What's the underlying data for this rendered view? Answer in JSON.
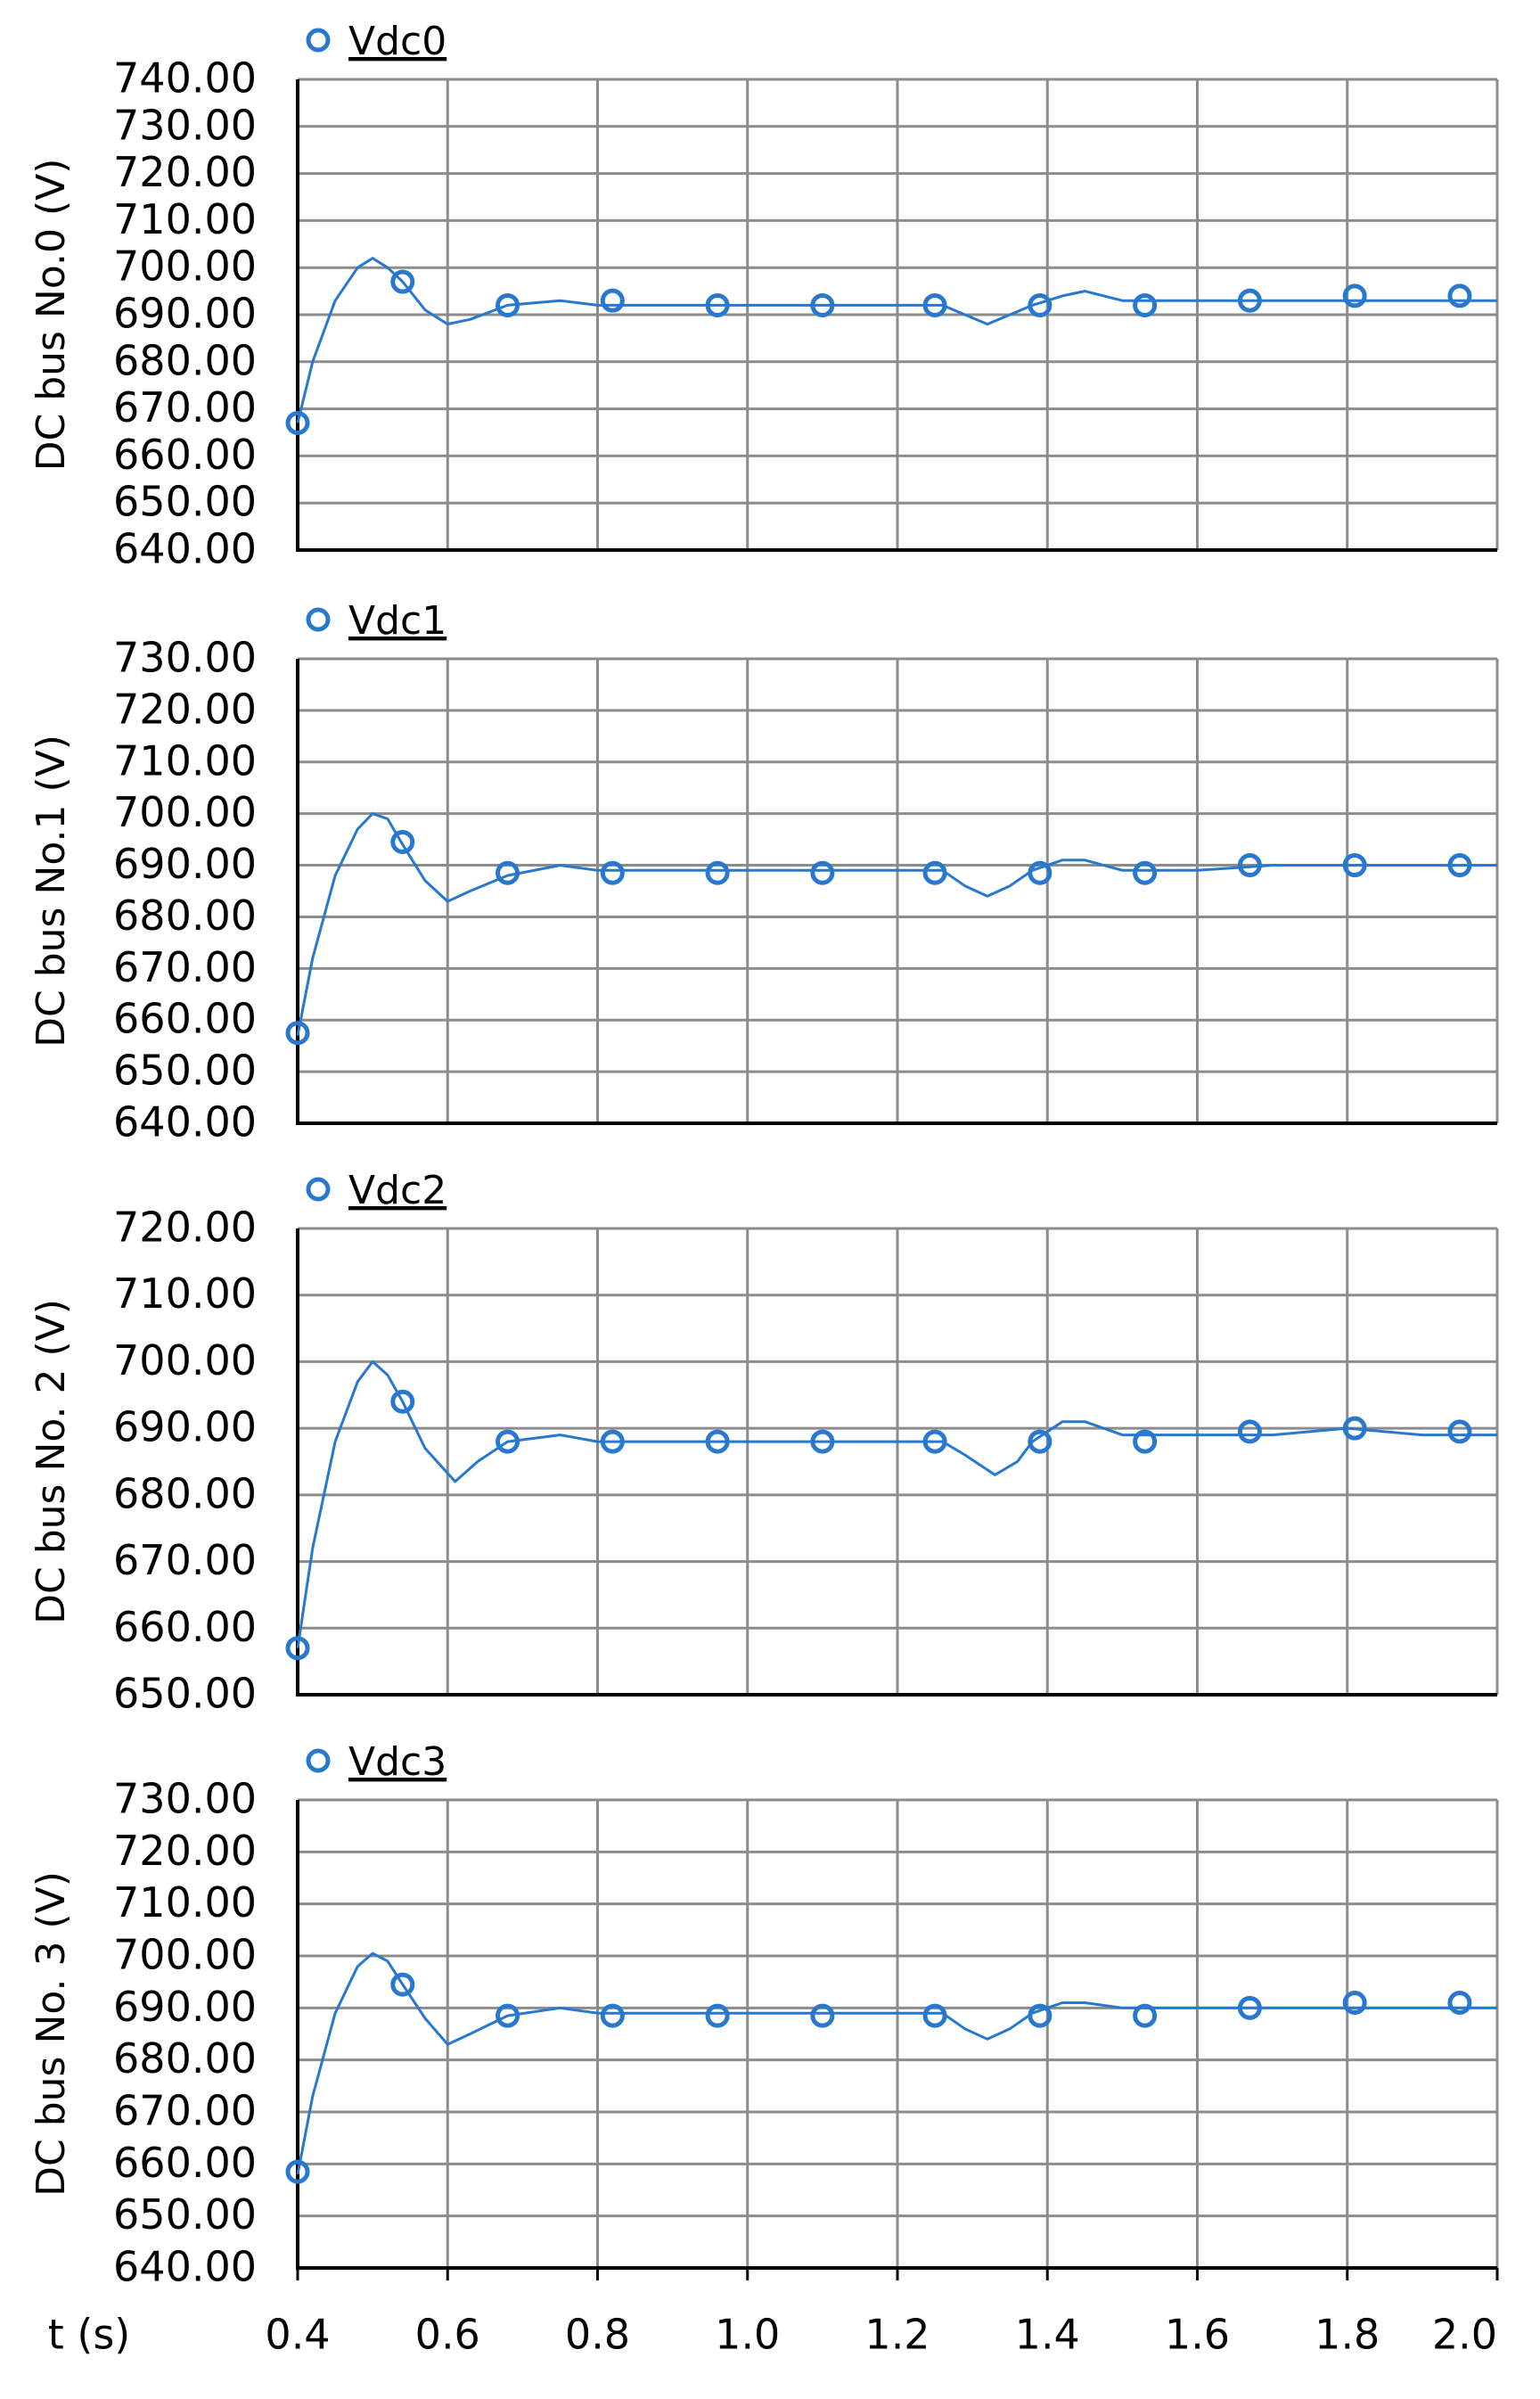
{
  "chart_data": [
    {
      "type": "line",
      "ylabel": "DC bus No.0 (V)",
      "xlim": [
        0.4,
        2.0
      ],
      "xticks": [
        0.4,
        0.6,
        0.8,
        1,
        1.2,
        1.4,
        1.6,
        1.8,
        2
      ],
      "ylim": [
        640,
        740
      ],
      "yticks": [
        {
          "value": 640,
          "label": "640.00"
        },
        {
          "value": 650,
          "label": "650.00"
        },
        {
          "value": 660,
          "label": "660.00"
        },
        {
          "value": 670,
          "label": "670.00"
        },
        {
          "value": 680,
          "label": "680.00"
        },
        {
          "value": 690,
          "label": "690.00"
        },
        {
          "value": 700,
          "label": "700.00"
        },
        {
          "value": 710,
          "label": "710.00"
        },
        {
          "value": 720,
          "label": "720.00"
        },
        {
          "value": 730,
          "label": "730.00"
        },
        {
          "value": 740,
          "label": "740.00"
        }
      ],
      "grid": true,
      "series": [
        {
          "name": "Vdc0",
          "color": "#2878d0",
          "x": [
            0.4,
            0.42,
            0.45,
            0.48,
            0.5,
            0.52,
            0.54,
            0.57,
            0.6,
            0.63,
            0.68,
            0.75,
            0.8,
            0.9,
            1.0,
            1.1,
            1.2,
            1.26,
            1.29,
            1.32,
            1.35,
            1.38,
            1.42,
            1.45,
            1.5,
            1.6,
            1.7,
            1.8,
            1.9,
            2.0
          ],
          "values": [
            667,
            680,
            693,
            700,
            702,
            700,
            697,
            691,
            688,
            689,
            692,
            693,
            692,
            692,
            692,
            692,
            692,
            692,
            690,
            688,
            690,
            692,
            694,
            695,
            693,
            693,
            693,
            693,
            693,
            693
          ],
          "markers": {
            "x": [
              0.4,
              0.54,
              0.68,
              0.82,
              0.96,
              1.1,
              1.25,
              1.39,
              1.53,
              1.67,
              1.81,
              1.95
            ],
            "values": [
              667,
              697,
              692,
              693,
              692,
              692,
              692,
              692,
              692,
              693,
              694,
              694
            ]
          }
        }
      ]
    },
    {
      "type": "line",
      "ylabel": "DC bus No.1 (V)",
      "xlim": [
        0.4,
        2.0
      ],
      "xticks": [
        0.4,
        0.6,
        0.8,
        1,
        1.2,
        1.4,
        1.6,
        1.8,
        2
      ],
      "ylim": [
        640,
        730
      ],
      "yticks": [
        {
          "value": 640,
          "label": "640.00"
        },
        {
          "value": 650,
          "label": "650.00"
        },
        {
          "value": 660,
          "label": "660.00"
        },
        {
          "value": 670,
          "label": "670.00"
        },
        {
          "value": 680,
          "label": "680.00"
        },
        {
          "value": 690,
          "label": "690.00"
        },
        {
          "value": 700,
          "label": "700.00"
        },
        {
          "value": 710,
          "label": "710.00"
        },
        {
          "value": 720,
          "label": "720.00"
        },
        {
          "value": 730,
          "label": "730.00"
        }
      ],
      "grid": true,
      "series": [
        {
          "name": "Vdc1",
          "color": "#2878d0",
          "x": [
            0.4,
            0.42,
            0.45,
            0.48,
            0.5,
            0.52,
            0.54,
            0.57,
            0.6,
            0.63,
            0.68,
            0.75,
            0.8,
            0.9,
            1.0,
            1.1,
            1.2,
            1.26,
            1.29,
            1.32,
            1.35,
            1.38,
            1.42,
            1.45,
            1.5,
            1.6,
            1.7,
            1.8,
            1.9,
            2.0
          ],
          "values": [
            657,
            672,
            688,
            697,
            700,
            699,
            694,
            687,
            683,
            685,
            688,
            690,
            689,
            689,
            689,
            689,
            689,
            689,
            686,
            684,
            686,
            689,
            691,
            691,
            689,
            689,
            690,
            690,
            690,
            690
          ],
          "markers": {
            "x": [
              0.4,
              0.54,
              0.68,
              0.82,
              0.96,
              1.1,
              1.25,
              1.39,
              1.53,
              1.67,
              1.81,
              1.95
            ],
            "values": [
              657.5,
              694.5,
              688.5,
              688.5,
              688.5,
              688.5,
              688.5,
              688.5,
              688.5,
              690,
              690,
              690
            ]
          }
        }
      ]
    },
    {
      "type": "line",
      "ylabel": "DC bus No. 2 (V)",
      "xlim": [
        0.4,
        2.0
      ],
      "xticks": [
        0.4,
        0.6,
        0.8,
        1,
        1.2,
        1.4,
        1.6,
        1.8,
        2
      ],
      "ylim": [
        650,
        720
      ],
      "yticks": [
        {
          "value": 650,
          "label": "650.00"
        },
        {
          "value": 660,
          "label": "660.00"
        },
        {
          "value": 670,
          "label": "670.00"
        },
        {
          "value": 680,
          "label": "680.00"
        },
        {
          "value": 690,
          "label": "690.00"
        },
        {
          "value": 700,
          "label": "700.00"
        },
        {
          "value": 710,
          "label": "710.00"
        },
        {
          "value": 720,
          "label": "720.00"
        }
      ],
      "grid": true,
      "series": [
        {
          "name": "Vdc2",
          "color": "#2878d0",
          "x": [
            0.4,
            0.42,
            0.45,
            0.48,
            0.5,
            0.52,
            0.54,
            0.57,
            0.61,
            0.64,
            0.68,
            0.75,
            0.8,
            0.9,
            1.0,
            1.1,
            1.2,
            1.26,
            1.29,
            1.33,
            1.36,
            1.38,
            1.42,
            1.45,
            1.5,
            1.6,
            1.7,
            1.8,
            1.9,
            2.0
          ],
          "values": [
            657,
            672,
            688,
            697,
            700,
            698,
            694,
            687,
            682,
            685,
            688,
            689,
            688,
            688,
            688,
            688,
            688,
            688,
            686,
            683,
            685,
            688,
            691,
            691,
            689,
            689,
            689,
            690,
            689,
            689
          ],
          "markers": {
            "x": [
              0.4,
              0.54,
              0.68,
              0.82,
              0.96,
              1.1,
              1.25,
              1.39,
              1.53,
              1.67,
              1.81,
              1.95
            ],
            "values": [
              657,
              694,
              688,
              688,
              688,
              688,
              688,
              688,
              688,
              689.5,
              690,
              689.5
            ]
          }
        }
      ]
    },
    {
      "type": "line",
      "ylabel": "DC bus No. 3 (V)",
      "xlabel": "t (s)",
      "xlim": [
        0.4,
        2.0
      ],
      "xticks": [
        0.4,
        0.6,
        0.8,
        {
          "value": 1,
          "label": "1.0"
        },
        1.2,
        1.4,
        1.6,
        1.8,
        {
          "value": 2,
          "label": "2.0"
        }
      ],
      "ylim": [
        640,
        730
      ],
      "yticks": [
        {
          "value": 640,
          "label": "640.00"
        },
        {
          "value": 650,
          "label": "650.00"
        },
        {
          "value": 660,
          "label": "660.00"
        },
        {
          "value": 670,
          "label": "670.00"
        },
        {
          "value": 680,
          "label": "680.00"
        },
        {
          "value": 690,
          "label": "690.00"
        },
        {
          "value": 700,
          "label": "700.00"
        },
        {
          "value": 710,
          "label": "710.00"
        },
        {
          "value": 720,
          "label": "720.00"
        },
        {
          "value": 730,
          "label": "730.00"
        }
      ],
      "grid": true,
      "series": [
        {
          "name": "Vdc3",
          "color": "#2878d0",
          "x": [
            0.4,
            0.42,
            0.45,
            0.48,
            0.5,
            0.52,
            0.54,
            0.57,
            0.6,
            0.63,
            0.68,
            0.75,
            0.8,
            0.9,
            1.0,
            1.1,
            1.2,
            1.26,
            1.29,
            1.32,
            1.35,
            1.38,
            1.42,
            1.45,
            1.5,
            1.6,
            1.7,
            1.8,
            1.9,
            2.0
          ],
          "values": [
            658,
            673,
            689,
            698,
            700.5,
            699,
            694.5,
            688,
            683,
            685,
            688.5,
            690,
            689,
            689,
            689,
            689,
            689,
            689,
            686,
            684,
            686,
            689,
            691,
            691,
            690,
            690,
            690,
            690,
            690,
            690
          ],
          "markers": {
            "x": [
              0.4,
              0.54,
              0.68,
              0.82,
              0.96,
              1.1,
              1.25,
              1.39,
              1.53,
              1.67,
              1.81,
              1.95
            ],
            "values": [
              658.5,
              694.5,
              688.5,
              688.5,
              688.5,
              688.5,
              688.5,
              688.5,
              688.5,
              690,
              691,
              691
            ]
          }
        }
      ]
    }
  ]
}
